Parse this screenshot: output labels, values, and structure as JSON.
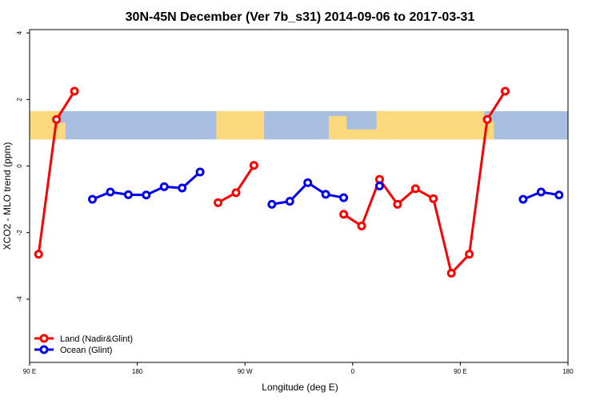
{
  "chart_data": {
    "type": "line",
    "title": "30N-45N December (Ver 7b_s31)   2014-09-06 to 2017-03-31",
    "xlabel": "Longitude (deg E)",
    "ylabel": "XCO2 - MLO trend (ppm)",
    "xlim": [
      90,
      540
    ],
    "ylim": [
      -5.9,
      4.1
    ],
    "x_ticks": [
      {
        "value": 90,
        "label": "90 E"
      },
      {
        "value": 180,
        "label": "180"
      },
      {
        "value": 270,
        "label": "90 W"
      },
      {
        "value": 360,
        "label": "0"
      },
      {
        "value": 450,
        "label": "90 E"
      },
      {
        "value": 540,
        "label": "180"
      }
    ],
    "y_ticks": [
      {
        "value": 4,
        "label": "4"
      },
      {
        "value": 2,
        "label": "2"
      },
      {
        "value": 0,
        "label": "0"
      },
      {
        "value": -2,
        "label": "-2"
      },
      {
        "value": -4,
        "label": "-4"
      }
    ],
    "map_band": {
      "y_range": [
        0.8,
        1.65
      ],
      "ocean_color": "#a8bedf",
      "land_color": "#fcd97c"
    },
    "legend_position": "bottom-left",
    "series": [
      {
        "name": "Land (Nadir&Glint)",
        "color": "#ff0000",
        "segments": [
          [
            [
              97.5,
              -2.65
            ],
            [
              112.5,
              1.4
            ],
            [
              127.5,
              2.25
            ]
          ],
          [
            [
              247.5,
              -1.1
            ],
            [
              262.5,
              -0.8
            ],
            [
              277.5,
              0.02
            ]
          ],
          [
            [
              352.5,
              -1.45
            ],
            [
              367.5,
              -1.8
            ],
            [
              382.5,
              -0.4
            ],
            [
              397.5,
              -1.15
            ],
            [
              412.5,
              -0.68
            ],
            [
              427.5,
              -0.98
            ],
            [
              442.5,
              -3.22
            ],
            [
              457.5,
              -2.65
            ],
            [
              472.5,
              1.4
            ],
            [
              487.5,
              2.25
            ]
          ]
        ]
      },
      {
        "name": "Ocean (Glint)",
        "color": "#0000ee",
        "segments": [
          [
            [
              142.5,
              -1.0
            ],
            [
              157.5,
              -0.78
            ],
            [
              172.5,
              -0.86
            ],
            [
              187.5,
              -0.87
            ],
            [
              202.5,
              -0.62
            ],
            [
              217.5,
              -0.66
            ],
            [
              232.5,
              -0.18
            ]
          ],
          [
            [
              292.5,
              -1.15
            ],
            [
              307.5,
              -1.06
            ],
            [
              322.5,
              -0.5
            ],
            [
              337.5,
              -0.85
            ],
            [
              352.5,
              -0.95
            ]
          ],
          [
            [
              382.5,
              -0.6
            ]
          ],
          [
            [
              502.5,
              -1.0
            ],
            [
              517.5,
              -0.78
            ],
            [
              532.5,
              -0.87
            ]
          ]
        ]
      }
    ]
  }
}
